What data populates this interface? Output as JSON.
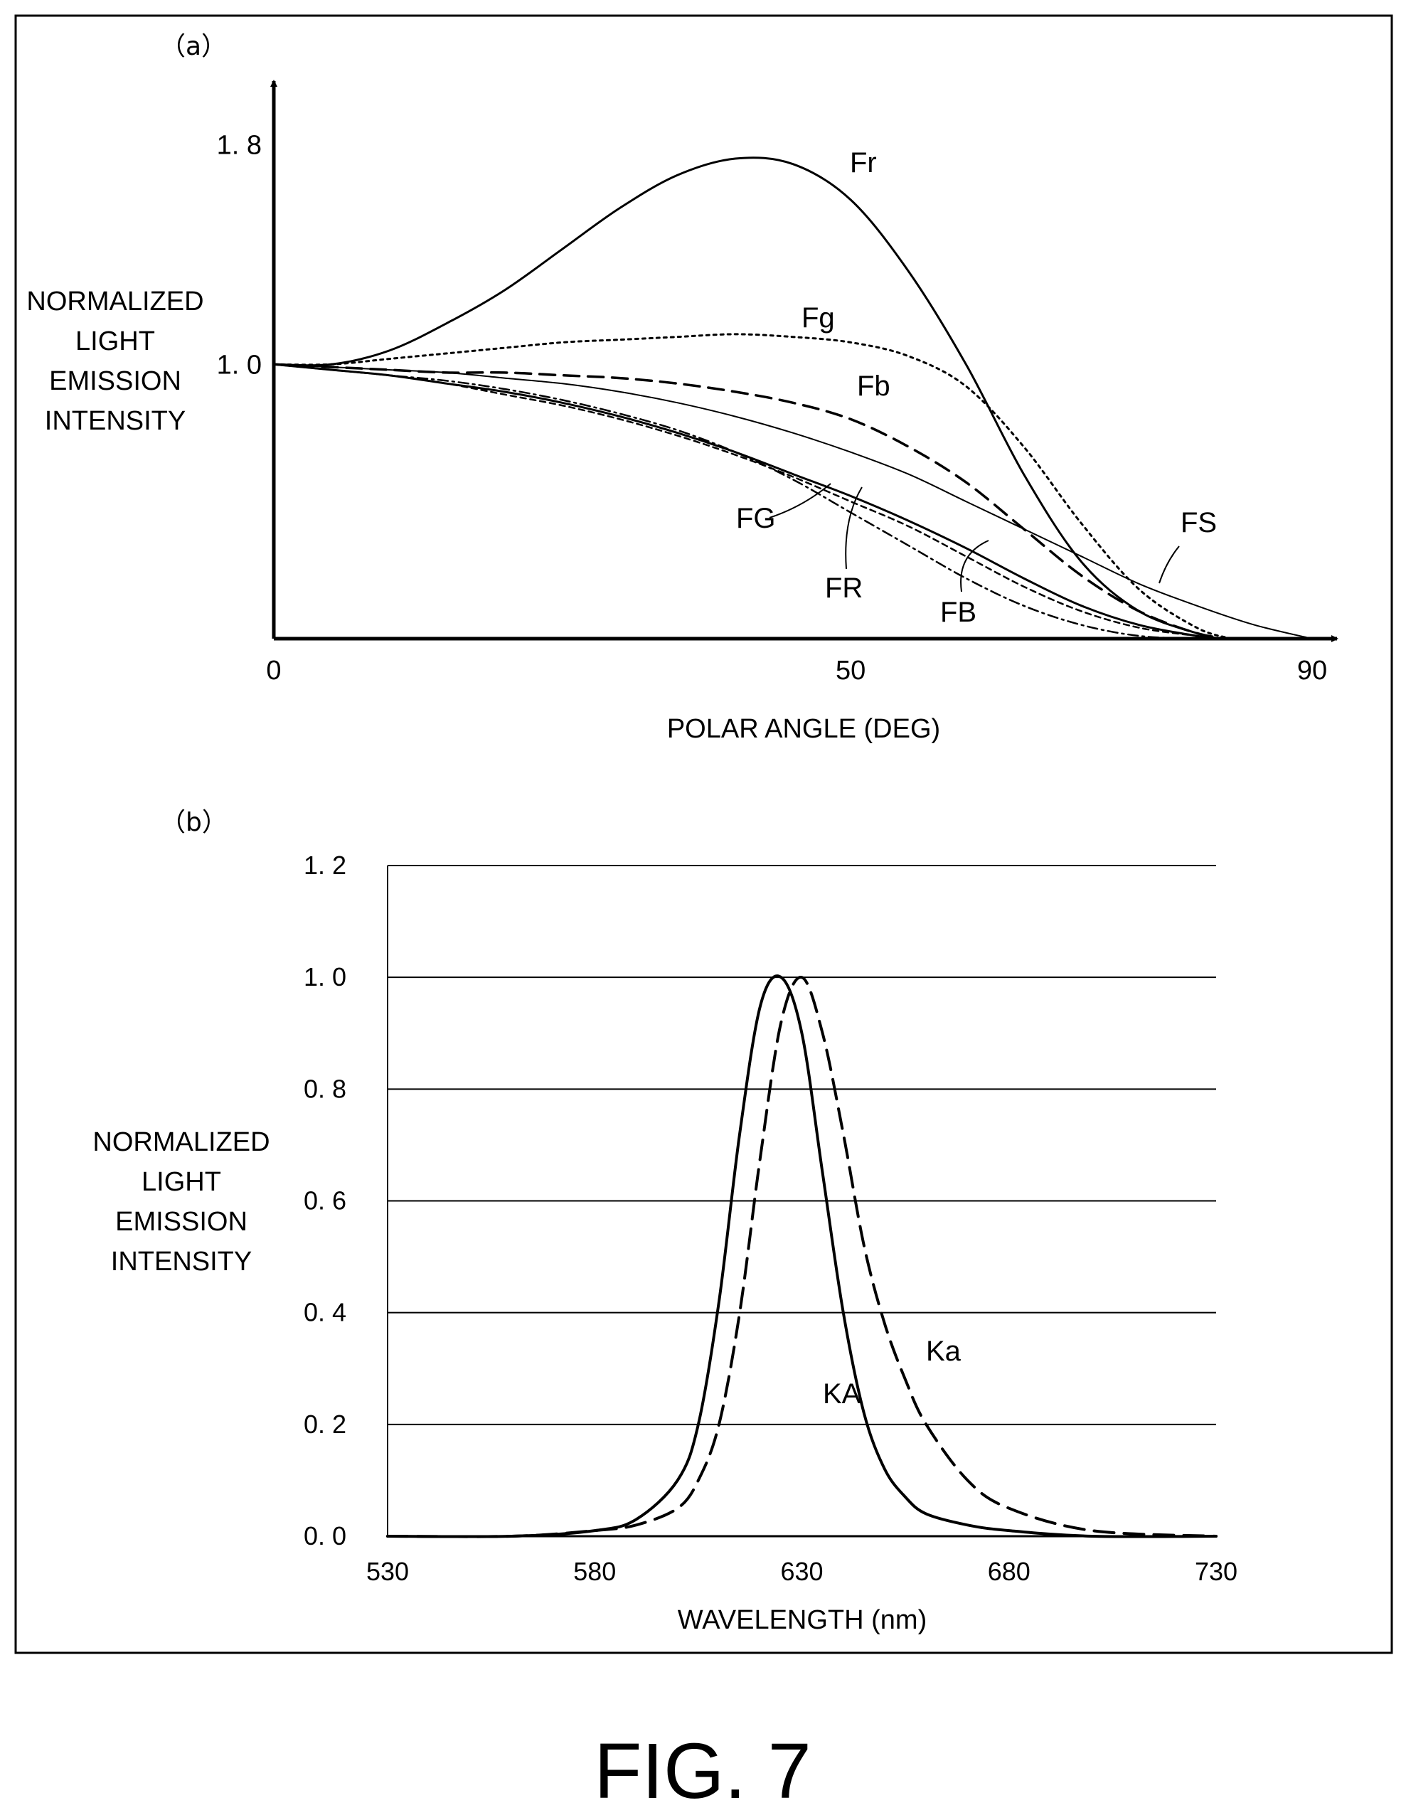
{
  "figure": {
    "caption": "FIG. 7"
  },
  "chart_data": [
    {
      "panel_label": "（a）",
      "type": "line",
      "xlabel": "POLAR ANGLE (DEG)",
      "ylabel_lines": [
        "NORMALIZED",
        "LIGHT",
        "EMISSION",
        "INTENSITY"
      ],
      "xlim": [
        0,
        90
      ],
      "ylim": [
        0,
        2.03
      ],
      "x_ticks": [
        {
          "value": 0,
          "label": "0"
        },
        {
          "value": 50,
          "label": "50"
        },
        {
          "value": 90,
          "label": "90"
        }
      ],
      "y_ticks": [
        {
          "value": 1.0,
          "label": "1. 0"
        },
        {
          "value": 1.8,
          "label": "1. 8"
        }
      ],
      "grid": false,
      "series": [
        {
          "name": "Fr",
          "style": "solid",
          "x": [
            0,
            5,
            10,
            15,
            20,
            25,
            30,
            35,
            40,
            45,
            50,
            55,
            60,
            65,
            70,
            75,
            80,
            82
          ],
          "y": [
            1.0,
            1.0,
            1.05,
            1.15,
            1.27,
            1.42,
            1.57,
            1.69,
            1.75,
            1.73,
            1.6,
            1.34,
            1.0,
            0.6,
            0.28,
            0.1,
            0.02,
            0.0
          ]
        },
        {
          "name": "Fg",
          "style": "dotted",
          "x": [
            0,
            5,
            10,
            15,
            20,
            25,
            30,
            35,
            40,
            45,
            50,
            55,
            60,
            65,
            70,
            75,
            80,
            83
          ],
          "y": [
            1.0,
            1.0,
            1.02,
            1.04,
            1.06,
            1.08,
            1.09,
            1.1,
            1.11,
            1.1,
            1.08,
            1.03,
            0.92,
            0.7,
            0.42,
            0.18,
            0.04,
            0.0
          ]
        },
        {
          "name": "Fb",
          "style": "dashed",
          "x": [
            0,
            5,
            10,
            15,
            20,
            25,
            30,
            35,
            40,
            45,
            50,
            55,
            60,
            65,
            70,
            75,
            80,
            83
          ],
          "y": [
            1.0,
            0.99,
            0.98,
            0.97,
            0.97,
            0.96,
            0.95,
            0.93,
            0.9,
            0.86,
            0.8,
            0.7,
            0.57,
            0.4,
            0.23,
            0.1,
            0.02,
            0.0
          ]
        },
        {
          "name": "FS",
          "style": "solid-thin",
          "x": [
            0,
            5,
            10,
            15,
            20,
            25,
            30,
            35,
            40,
            45,
            50,
            55,
            60,
            65,
            70,
            75,
            80,
            85,
            90
          ],
          "y": [
            1.0,
            0.99,
            0.98,
            0.97,
            0.95,
            0.93,
            0.9,
            0.86,
            0.81,
            0.75,
            0.68,
            0.6,
            0.5,
            0.4,
            0.3,
            0.2,
            0.12,
            0.05,
            0.0
          ]
        },
        {
          "name": "FG",
          "style": "dash-dot",
          "x": [
            0,
            5,
            10,
            15,
            20,
            25,
            30,
            35,
            40,
            45,
            50,
            55,
            60,
            65,
            70,
            75,
            80,
            82
          ],
          "y": [
            1.0,
            0.98,
            0.96,
            0.94,
            0.91,
            0.87,
            0.82,
            0.76,
            0.68,
            0.58,
            0.46,
            0.34,
            0.22,
            0.12,
            0.05,
            0.01,
            0.0,
            0.0
          ]
        },
        {
          "name": "FR",
          "style": "solid",
          "x": [
            0,
            5,
            10,
            15,
            20,
            25,
            30,
            35,
            40,
            45,
            50,
            55,
            60,
            65,
            70,
            75,
            80,
            82
          ],
          "y": [
            1.0,
            0.98,
            0.96,
            0.93,
            0.9,
            0.86,
            0.81,
            0.75,
            0.68,
            0.6,
            0.52,
            0.43,
            0.33,
            0.22,
            0.12,
            0.05,
            0.01,
            0.0
          ]
        },
        {
          "name": "FB",
          "style": "dashed-fine",
          "x": [
            0,
            5,
            10,
            15,
            20,
            25,
            30,
            35,
            40,
            45,
            50,
            55,
            60,
            65,
            70,
            75,
            80,
            82
          ],
          "y": [
            1.0,
            0.98,
            0.96,
            0.93,
            0.89,
            0.85,
            0.8,
            0.74,
            0.67,
            0.59,
            0.5,
            0.41,
            0.3,
            0.19,
            0.1,
            0.04,
            0.01,
            0.0
          ]
        }
      ],
      "annotations": [
        "Fr",
        "Fg",
        "Fb",
        "FS",
        "FG",
        "FR",
        "FB"
      ]
    },
    {
      "panel_label": "（b）",
      "type": "line",
      "xlabel": "WAVELENGTH (nm)",
      "ylabel_lines": [
        "NORMALIZED",
        "LIGHT",
        "EMISSION",
        "INTENSITY"
      ],
      "xlim": [
        530,
        730
      ],
      "ylim": [
        0,
        1.2
      ],
      "x_ticks": [
        {
          "value": 530,
          "label": "530"
        },
        {
          "value": 580,
          "label": "580"
        },
        {
          "value": 630,
          "label": "630"
        },
        {
          "value": 680,
          "label": "680"
        },
        {
          "value": 730,
          "label": "730"
        }
      ],
      "y_ticks": [
        {
          "value": 0.0,
          "label": "0. 0"
        },
        {
          "value": 0.2,
          "label": "0. 2"
        },
        {
          "value": 0.4,
          "label": "0. 4"
        },
        {
          "value": 0.6,
          "label": "0. 6"
        },
        {
          "value": 0.8,
          "label": "0. 8"
        },
        {
          "value": 1.0,
          "label": "1. 0"
        },
        {
          "value": 1.2,
          "label": "1. 2"
        }
      ],
      "grid": true,
      "series": [
        {
          "name": "KA",
          "style": "solid",
          "x": [
            530,
            560,
            580,
            590,
            600,
            605,
            610,
            615,
            620,
            625,
            630,
            635,
            640,
            645,
            650,
            655,
            660,
            670,
            680,
            700,
            730
          ],
          "y": [
            0.0,
            0.0,
            0.01,
            0.03,
            0.1,
            0.2,
            0.42,
            0.72,
            0.95,
            1.0,
            0.9,
            0.65,
            0.4,
            0.22,
            0.12,
            0.07,
            0.04,
            0.02,
            0.01,
            0.0,
            0.0
          ]
        },
        {
          "name": "Ka",
          "style": "dashed",
          "x": [
            530,
            560,
            580,
            590,
            600,
            605,
            610,
            615,
            620,
            625,
            630,
            635,
            640,
            645,
            650,
            655,
            660,
            670,
            680,
            700,
            730
          ],
          "y": [
            0.0,
            0.0,
            0.01,
            0.02,
            0.05,
            0.1,
            0.2,
            0.4,
            0.68,
            0.92,
            1.0,
            0.9,
            0.72,
            0.52,
            0.38,
            0.28,
            0.2,
            0.1,
            0.05,
            0.01,
            0.0
          ]
        }
      ],
      "annotations": [
        "KA",
        "Ka"
      ]
    }
  ]
}
